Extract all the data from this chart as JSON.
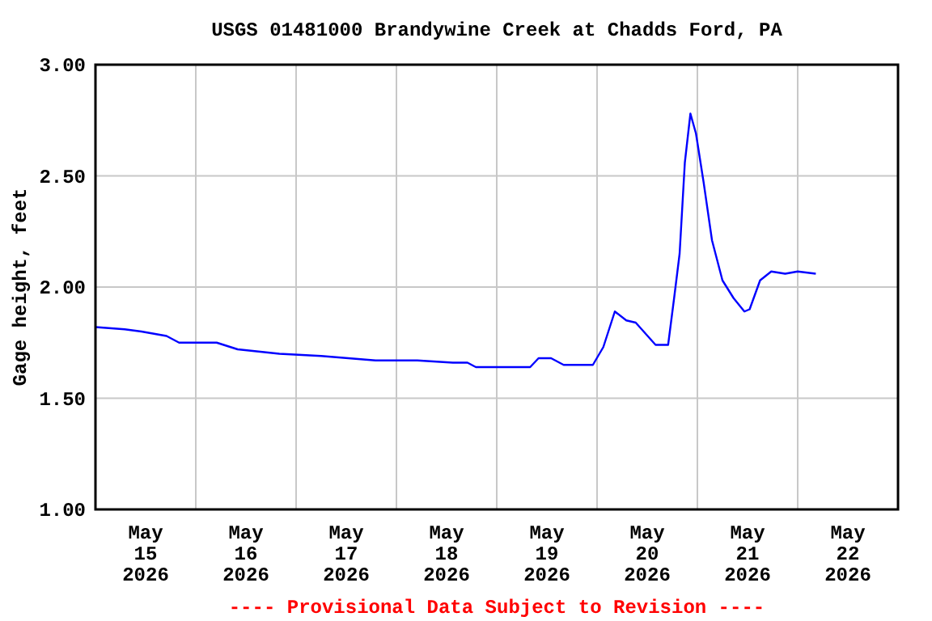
{
  "chart_data": {
    "type": "line",
    "title": "USGS 01481000 Brandywine Creek at Chadds Ford, PA",
    "ylabel": "Gage height, feet",
    "annotations": [
      "---- Provisional Data Subject to Revision ----"
    ],
    "x": [
      "2026-05-15T00:00",
      "2026-05-15T07:00",
      "2026-05-15T11:00",
      "2026-05-15T17:00",
      "2026-05-15T20:00",
      "2026-05-16T05:00",
      "2026-05-16T10:00",
      "2026-05-16T20:00",
      "2026-05-17T06:00",
      "2026-05-17T19:00",
      "2026-05-18T05:00",
      "2026-05-18T13:30",
      "2026-05-18T17:00",
      "2026-05-18T19:00",
      "2026-05-18T21:00",
      "2026-05-19T02:00",
      "2026-05-19T08:00",
      "2026-05-19T10:00",
      "2026-05-19T13:00",
      "2026-05-19T16:00",
      "2026-05-19T23:00",
      "2026-05-20T01:30",
      "2026-05-20T04:15",
      "2026-05-20T07:00",
      "2026-05-20T09:15",
      "2026-05-20T14:00",
      "2026-05-20T17:00",
      "2026-05-20T18:30",
      "2026-05-20T19:45",
      "2026-05-20T21:00",
      "2026-05-20T22:20",
      "2026-05-20T23:40",
      "2026-05-21T01:30",
      "2026-05-21T03:30",
      "2026-05-21T06:00",
      "2026-05-21T08:40",
      "2026-05-21T11:15",
      "2026-05-21T12:30",
      "2026-05-21T15:00",
      "2026-05-21T17:40",
      "2026-05-21T21:00",
      "2026-05-22T00:00",
      "2026-05-22T04:20"
    ],
    "series": [
      {
        "color": "#0000ff",
        "values": [
          1.82,
          1.81,
          1.8,
          1.78,
          1.75,
          1.75,
          1.72,
          1.7,
          1.69,
          1.67,
          1.67,
          1.66,
          1.66,
          1.64,
          1.64,
          1.64,
          1.64,
          1.68,
          1.68,
          1.65,
          1.65,
          1.73,
          1.89,
          1.85,
          1.84,
          1.74,
          1.74,
          1.96,
          2.15,
          2.56,
          2.78,
          2.69,
          2.47,
          2.21,
          2.03,
          1.95,
          1.89,
          1.9,
          2.03,
          2.07,
          2.06,
          2.07,
          2.06
        ]
      }
    ],
    "xlim": [
      "2026-05-15T00:00",
      "2026-05-23T00:00"
    ],
    "xticks": [
      {
        "value": "2026-05-15T12:00",
        "label": "May\n15\n2026"
      },
      {
        "value": "2026-05-16T00:00",
        "label": null
      },
      {
        "value": "2026-05-16T12:00",
        "label": "May\n16\n2026"
      },
      {
        "value": "2026-05-17T00:00",
        "label": null
      },
      {
        "value": "2026-05-17T12:00",
        "label": "May\n17\n2026"
      },
      {
        "value": "2026-05-18T00:00",
        "label": null
      },
      {
        "value": "2026-05-18T12:00",
        "label": "May\n18\n2026"
      },
      {
        "value": "2026-05-19T00:00",
        "label": null
      },
      {
        "value": "2026-05-19T12:00",
        "label": "May\n19\n2026"
      },
      {
        "value": "2026-05-20T00:00",
        "label": null
      },
      {
        "value": "2026-05-20T12:00",
        "label": "May\n20\n2026"
      },
      {
        "value": "2026-05-21T00:00",
        "label": null
      },
      {
        "value": "2026-05-21T12:00",
        "label": "May\n21\n2026"
      },
      {
        "value": "2026-05-22T00:00",
        "label": null
      },
      {
        "value": "2026-05-22T12:00",
        "label": "May\n22\n2026"
      }
    ],
    "ylim": [
      1,
      3
    ],
    "yticks": [
      {
        "value": 1,
        "label": "1.00"
      },
      {
        "value": 1.5,
        "label": "1.50"
      },
      {
        "value": 2,
        "label": "2.00"
      },
      {
        "value": 2.5,
        "label": "2.50"
      },
      {
        "value": 3,
        "label": "3.00"
      }
    ],
    "grid": true,
    "marker": "none",
    "line_style": "solid"
  }
}
